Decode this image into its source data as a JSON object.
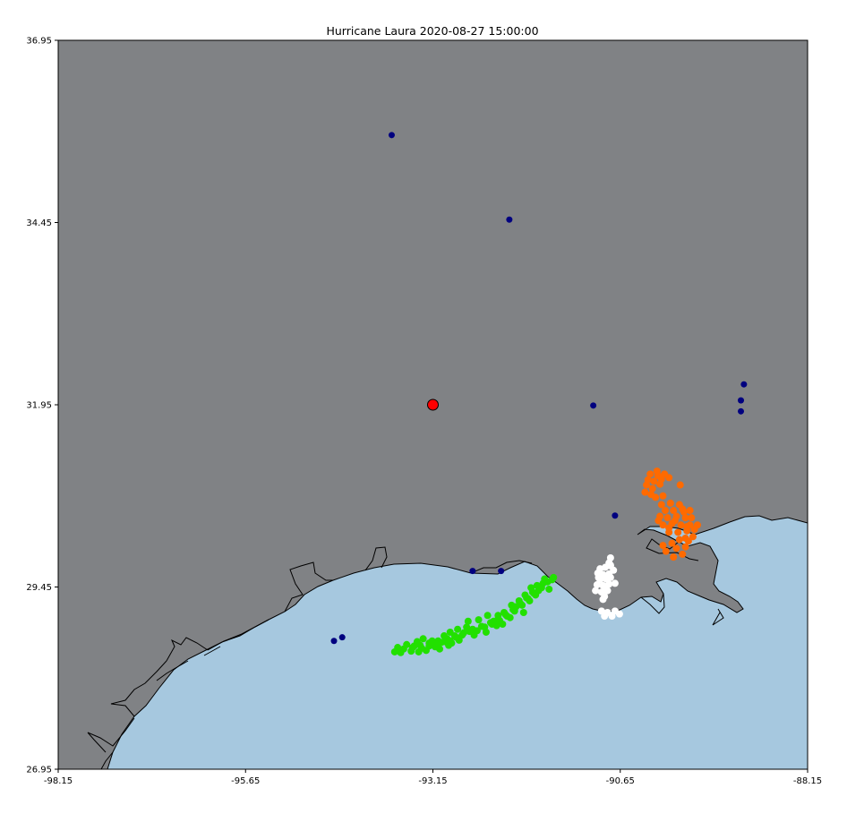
{
  "title": "Hurricane Laura 2020-08-27 15:00:00",
  "colors": {
    "land": "#808285",
    "water": "#a6c8df",
    "coastline": "#000000",
    "station": "#00007f",
    "storm_center": "#ff0000",
    "cluster_green": "#22e000",
    "cluster_orange": "#ff6a00",
    "cluster_white": "#ffffff"
  },
  "chart_data": {
    "type": "scatter",
    "title": "Hurricane Laura 2020-08-27 15:00:00",
    "xlim": [
      -98.15,
      -88.15
    ],
    "ylim": [
      26.95,
      36.95
    ],
    "x_ticks": [
      "-98.15",
      "-95.65",
      "-93.15",
      "-90.65",
      "-88.15"
    ],
    "y_ticks": [
      "26.95",
      "29.45",
      "31.95",
      "34.45",
      "36.95"
    ],
    "grid": false,
    "storm_center": {
      "lon": -93.15,
      "lat": 31.95
    },
    "stations": [
      {
        "lon": -93.7,
        "lat": 35.65
      },
      {
        "lon": -92.13,
        "lat": 34.49
      },
      {
        "lon": -91.01,
        "lat": 31.94
      },
      {
        "lon": -89.0,
        "lat": 32.23
      },
      {
        "lon": -89.04,
        "lat": 32.01
      },
      {
        "lon": -89.04,
        "lat": 31.86
      },
      {
        "lon": -90.72,
        "lat": 30.43
      },
      {
        "lon": -92.62,
        "lat": 29.67
      },
      {
        "lon": -92.24,
        "lat": 29.67
      },
      {
        "lon": -94.36,
        "lat": 28.76
      },
      {
        "lon": -94.47,
        "lat": 28.71
      }
    ],
    "clusters": [
      {
        "color": "green",
        "points": [
          [
            -93.66,
            28.56
          ],
          [
            -93.54,
            28.6
          ],
          [
            -93.42,
            28.62
          ],
          [
            -93.32,
            28.65
          ],
          [
            -93.2,
            28.68
          ],
          [
            -93.08,
            28.71
          ],
          [
            -92.96,
            28.74
          ],
          [
            -92.86,
            28.78
          ],
          [
            -92.74,
            28.82
          ],
          [
            -92.62,
            28.87
          ],
          [
            -92.5,
            28.91
          ],
          [
            -92.38,
            28.96
          ],
          [
            -92.28,
            29.01
          ],
          [
            -92.18,
            29.07
          ],
          [
            -92.08,
            29.14
          ],
          [
            -91.98,
            29.22
          ],
          [
            -91.9,
            29.3
          ],
          [
            -91.82,
            29.38
          ],
          [
            -91.72,
            29.45
          ],
          [
            -91.62,
            29.52
          ],
          [
            -91.54,
            29.58
          ],
          [
            -93.5,
            28.66
          ],
          [
            -93.36,
            28.7
          ],
          [
            -93.24,
            28.58
          ],
          [
            -93.12,
            28.63
          ],
          [
            -93.0,
            28.78
          ],
          [
            -92.9,
            28.68
          ],
          [
            -92.8,
            28.72
          ],
          [
            -92.7,
            28.9
          ],
          [
            -92.6,
            28.79
          ],
          [
            -92.44,
            28.83
          ],
          [
            -92.34,
            28.98
          ],
          [
            -92.22,
            28.94
          ],
          [
            -92.12,
            29.03
          ],
          [
            -92.04,
            29.18
          ],
          [
            -91.94,
            29.1
          ],
          [
            -91.86,
            29.26
          ],
          [
            -91.78,
            29.34
          ],
          [
            -91.68,
            29.5
          ],
          [
            -91.6,
            29.42
          ],
          [
            -93.58,
            28.55
          ],
          [
            -93.44,
            28.57
          ],
          [
            -93.28,
            28.74
          ],
          [
            -93.16,
            28.71
          ],
          [
            -93.04,
            28.69
          ],
          [
            -92.92,
            28.83
          ],
          [
            -92.82,
            28.87
          ],
          [
            -92.66,
            28.84
          ],
          [
            -92.54,
            29.0
          ],
          [
            -92.42,
            29.06
          ],
          [
            -92.3,
            28.92
          ],
          [
            -92.2,
            29.1
          ],
          [
            -92.1,
            29.2
          ],
          [
            -92.0,
            29.26
          ],
          [
            -91.92,
            29.34
          ],
          [
            -91.84,
            29.44
          ],
          [
            -91.74,
            29.4
          ],
          [
            -91.66,
            29.56
          ],
          [
            -93.4,
            28.64
          ],
          [
            -93.3,
            28.61
          ],
          [
            -93.2,
            28.64
          ],
          [
            -93.1,
            28.66
          ],
          [
            -93.0,
            28.7
          ],
          [
            -92.92,
            28.71
          ],
          [
            -92.84,
            28.76
          ],
          [
            -92.76,
            28.79
          ],
          [
            -92.56,
            28.85
          ],
          [
            -92.46,
            28.9
          ],
          [
            -92.36,
            28.94
          ],
          [
            -92.26,
            28.99
          ],
          [
            -92.16,
            29.05
          ],
          [
            -92.06,
            29.12
          ],
          [
            -91.96,
            29.2
          ],
          [
            -91.88,
            29.29
          ],
          [
            -91.8,
            29.36
          ],
          [
            -91.7,
            29.44
          ],
          [
            -93.62,
            28.62
          ],
          [
            -92.68,
            28.98
          ],
          [
            -92.28,
            29.06
          ],
          [
            -91.76,
            29.47
          ],
          [
            -91.56,
            29.55
          ],
          [
            -93.34,
            28.56
          ],
          [
            -93.06,
            28.6
          ],
          [
            -92.94,
            28.65
          ]
        ]
      },
      {
        "color": "orange",
        "points": [
          [
            -90.25,
            31.0
          ],
          [
            -90.15,
            30.98
          ],
          [
            -90.3,
            30.85
          ],
          [
            -90.2,
            30.9
          ],
          [
            -90.1,
            30.93
          ],
          [
            -90.32,
            30.75
          ],
          [
            -90.22,
            30.8
          ],
          [
            -90.12,
            30.86
          ],
          [
            -90.0,
            30.95
          ],
          [
            -89.85,
            30.85
          ],
          [
            -90.18,
            30.68
          ],
          [
            -90.08,
            30.7
          ],
          [
            -90.1,
            30.58
          ],
          [
            -89.98,
            30.6
          ],
          [
            -89.86,
            30.58
          ],
          [
            -90.05,
            30.5
          ],
          [
            -89.94,
            30.5
          ],
          [
            -89.82,
            30.52
          ],
          [
            -90.12,
            30.42
          ],
          [
            -90.02,
            30.4
          ],
          [
            -89.9,
            30.42
          ],
          [
            -89.78,
            30.4
          ],
          [
            -89.72,
            30.5
          ],
          [
            -90.08,
            30.3
          ],
          [
            -89.96,
            30.32
          ],
          [
            -89.84,
            30.3
          ],
          [
            -89.72,
            30.3
          ],
          [
            -89.62,
            30.3
          ],
          [
            -90.0,
            30.2
          ],
          [
            -89.88,
            30.2
          ],
          [
            -89.76,
            30.22
          ],
          [
            -89.68,
            30.14
          ],
          [
            -90.08,
            30.02
          ],
          [
            -89.96,
            30.05
          ],
          [
            -89.86,
            30.1
          ],
          [
            -89.9,
            29.98
          ],
          [
            -89.78,
            30.0
          ],
          [
            -90.04,
            29.94
          ],
          [
            -89.82,
            29.9
          ],
          [
            -89.94,
            29.86
          ],
          [
            -89.76,
            30.28
          ],
          [
            -89.7,
            30.4
          ],
          [
            -89.8,
            30.48
          ],
          [
            -89.92,
            30.36
          ],
          [
            -90.0,
            30.26
          ],
          [
            -90.14,
            30.36
          ],
          [
            -89.66,
            30.24
          ],
          [
            -89.74,
            30.08
          ],
          [
            -90.28,
            30.92
          ],
          [
            -90.16,
            31.04
          ],
          [
            -90.06,
            31.0
          ],
          [
            -90.24,
            30.72
          ],
          [
            -89.78,
            30.12
          ]
        ]
      },
      {
        "color": "white",
        "points": [
          [
            -90.92,
            29.7
          ],
          [
            -90.85,
            29.72
          ],
          [
            -90.78,
            29.74
          ],
          [
            -90.95,
            29.64
          ],
          [
            -90.88,
            29.62
          ],
          [
            -90.8,
            29.63
          ],
          [
            -90.92,
            29.55
          ],
          [
            -90.84,
            29.56
          ],
          [
            -90.78,
            29.58
          ],
          [
            -90.96,
            29.48
          ],
          [
            -90.88,
            29.47
          ],
          [
            -90.8,
            29.49
          ],
          [
            -90.72,
            29.5
          ],
          [
            -90.98,
            29.4
          ],
          [
            -90.9,
            29.38
          ],
          [
            -90.82,
            29.4
          ],
          [
            -90.86,
            29.32
          ],
          [
            -90.78,
            29.75
          ],
          [
            -90.9,
            29.12
          ],
          [
            -90.82,
            29.1
          ],
          [
            -90.72,
            29.12
          ],
          [
            -90.86,
            29.05
          ],
          [
            -90.76,
            29.05
          ],
          [
            -90.66,
            29.08
          ],
          [
            -90.78,
            29.85
          ],
          [
            -90.8,
            29.78
          ],
          [
            -90.88,
            29.28
          ],
          [
            -90.94,
            29.58
          ],
          [
            -90.74,
            29.68
          ],
          [
            -90.84,
            29.44
          ]
        ]
      }
    ]
  }
}
